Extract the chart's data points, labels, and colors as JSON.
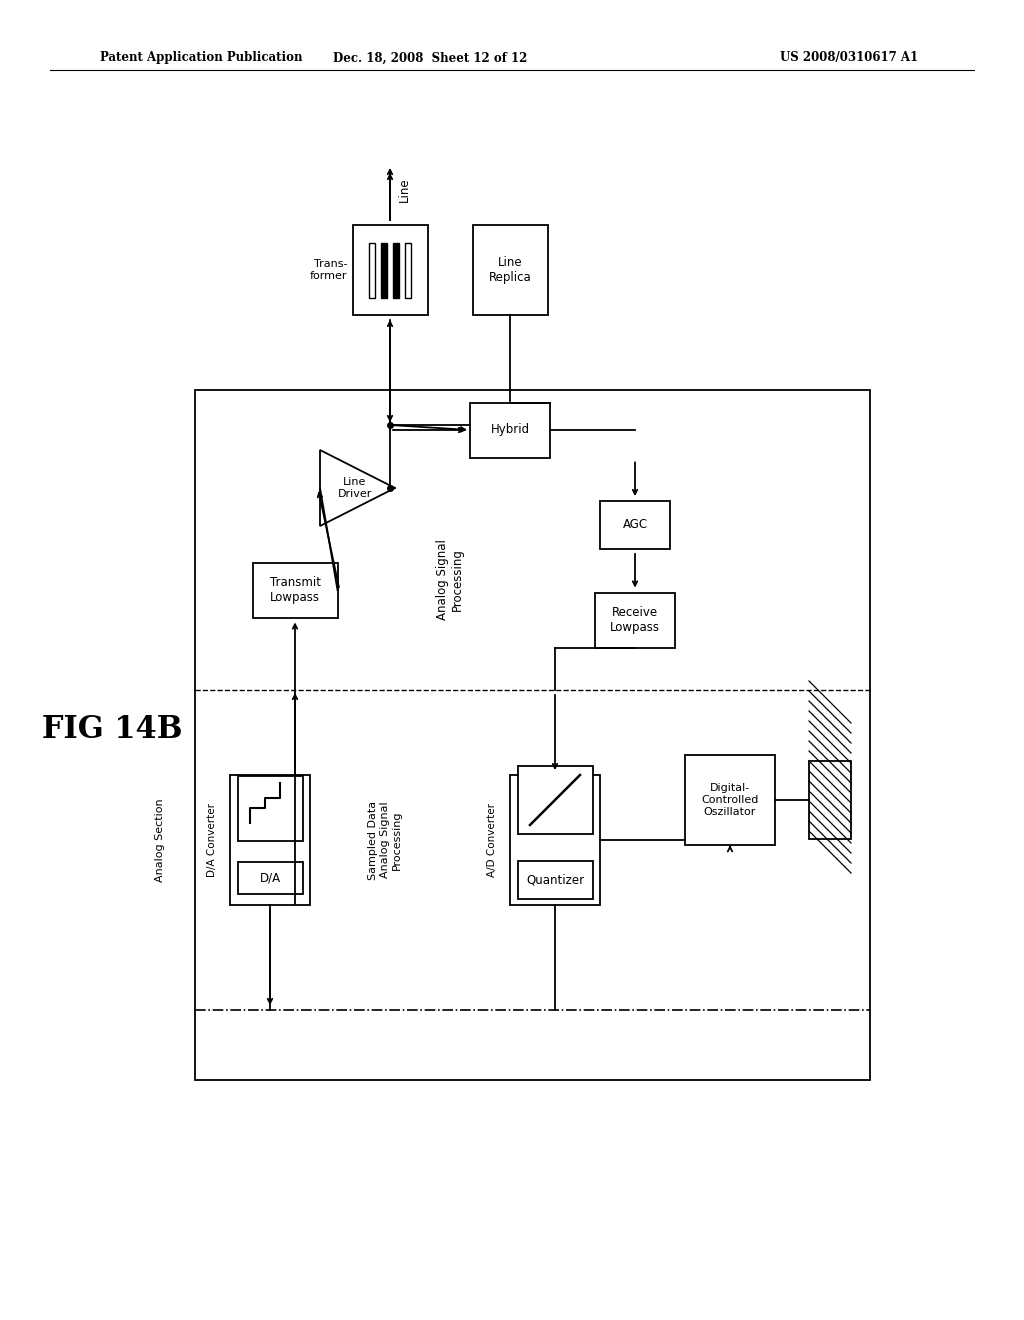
{
  "fig_label": "FIG 14B",
  "header_left": "Patent Application Publication",
  "header_mid": "Dec. 18, 2008  Sheet 12 of 12",
  "header_right": "US 2008/0310617 A1",
  "bg_color": "#ffffff",
  "line_color": "#000000"
}
